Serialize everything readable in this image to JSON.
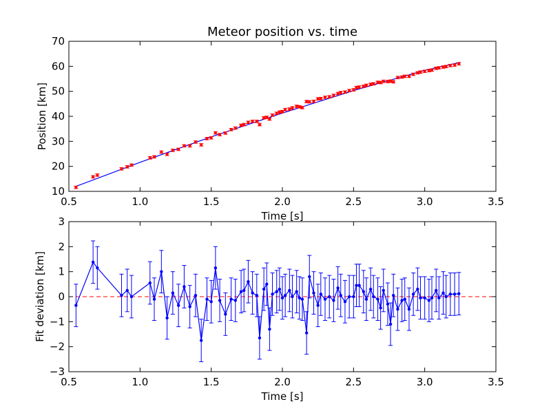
{
  "colors": {
    "fit_line": "#0000ff",
    "position_points": "#ff0000",
    "deviation_series": "#0000ff",
    "zero_reference": "#ff0000"
  },
  "chart_data": [
    {
      "type": "scatter",
      "title": "Meteor position vs. time",
      "xlabel": "Time [s]",
      "ylabel": "Position [km]",
      "xlim": [
        0.5,
        3.5
      ],
      "ylim": [
        10,
        70
      ],
      "xticks": [
        "0.5",
        "1.0",
        "1.5",
        "2.0",
        "2.5",
        "3.0",
        "3.5"
      ],
      "yticks": [
        "10",
        "20",
        "30",
        "40",
        "50",
        "60",
        "70"
      ],
      "grid": false,
      "fit_line": {
        "x": [
          0.55,
          1.0,
          1.5,
          2.0,
          2.5,
          3.0,
          3.25
        ],
        "y": [
          12.0,
          21.6,
          31.8,
          41.3,
          50.3,
          58.4,
          61.6
        ]
      },
      "series": [
        {
          "marker": "point with error bars",
          "error": 0.5,
          "x": [
            0.55,
            0.67,
            0.7,
            0.87,
            0.91,
            0.94,
            1.07,
            1.1,
            1.15,
            1.19,
            1.23,
            1.27,
            1.31,
            1.35,
            1.39,
            1.43,
            1.47,
            1.5,
            1.53,
            1.56,
            1.6,
            1.64,
            1.67,
            1.71,
            1.73,
            1.76,
            1.79,
            1.82,
            1.84,
            1.87,
            1.89,
            1.91,
            1.93,
            1.96,
            1.98,
            2.0,
            2.02,
            2.05,
            2.07,
            2.1,
            2.12,
            2.14,
            2.17,
            2.19,
            2.22,
            2.25,
            2.27,
            2.3,
            2.33,
            2.36,
            2.39,
            2.41,
            2.44,
            2.47,
            2.5,
            2.52,
            2.54,
            2.57,
            2.59,
            2.62,
            2.64,
            2.67,
            2.69,
            2.71,
            2.74,
            2.76,
            2.78,
            2.81,
            2.84,
            2.86,
            2.89,
            2.92,
            2.95,
            2.97,
            3.0,
            3.03,
            3.05,
            3.08,
            3.1,
            3.13,
            3.15,
            3.18,
            3.21,
            3.24
          ],
          "y": [
            11.6,
            15.8,
            16.5,
            19.0,
            19.8,
            20.5,
            23.4,
            23.8,
            25.7,
            24.8,
            26.4,
            26.8,
            28.2,
            28.2,
            29.7,
            28.6,
            31.1,
            31.4,
            33.4,
            32.7,
            33.3,
            34.7,
            35.3,
            36.4,
            36.7,
            37.6,
            38.0,
            38.0,
            36.7,
            39.4,
            39.6,
            38.9,
            40.5,
            41.2,
            41.7,
            41.9,
            42.7,
            42.9,
            43.4,
            44.0,
            43.8,
            43.5,
            45.9,
            45.8,
            46.0,
            47.0,
            47.1,
            47.6,
            47.8,
            48.4,
            49.1,
            49.5,
            49.7,
            50.3,
            50.6,
            51.5,
            51.7,
            52.0,
            52.4,
            52.8,
            53.0,
            53.6,
            53.5,
            54.0,
            53.9,
            54.1,
            53.8,
            55.5,
            55.7,
            56.0,
            56.0,
            56.8,
            57.4,
            57.7,
            58.0,
            58.3,
            58.5,
            59.2,
            59.4,
            59.7,
            59.9,
            60.3,
            60.5,
            61.0
          ]
        }
      ]
    },
    {
      "type": "line",
      "title": "",
      "xlabel": "Time [s]",
      "ylabel": "Fit deviation [km]",
      "xlim": [
        0.5,
        3.5
      ],
      "ylim": [
        -3,
        3
      ],
      "xticks": [
        "0.5",
        "1.0",
        "1.5",
        "2.0",
        "2.5",
        "3.0",
        "3.5"
      ],
      "yticks": [
        "−3",
        "−2",
        "−1",
        "0",
        "1",
        "2",
        "3"
      ],
      "grid": false,
      "reference_line": {
        "y": 0,
        "style": "dashed"
      },
      "series": [
        {
          "marker": "dots connected by line with error bars",
          "error": 0.85,
          "x": [
            0.55,
            0.67,
            0.7,
            0.87,
            0.91,
            0.94,
            1.07,
            1.1,
            1.15,
            1.19,
            1.23,
            1.27,
            1.31,
            1.35,
            1.39,
            1.43,
            1.47,
            1.5,
            1.53,
            1.56,
            1.6,
            1.64,
            1.67,
            1.71,
            1.73,
            1.76,
            1.79,
            1.82,
            1.84,
            1.87,
            1.89,
            1.91,
            1.93,
            1.96,
            1.98,
            2.0,
            2.02,
            2.05,
            2.07,
            2.1,
            2.12,
            2.14,
            2.17,
            2.19,
            2.22,
            2.25,
            2.27,
            2.3,
            2.33,
            2.36,
            2.39,
            2.41,
            2.44,
            2.47,
            2.5,
            2.52,
            2.54,
            2.57,
            2.59,
            2.62,
            2.64,
            2.67,
            2.69,
            2.71,
            2.74,
            2.76,
            2.78,
            2.81,
            2.84,
            2.86,
            2.89,
            2.92,
            2.95,
            2.97,
            3.0,
            3.03,
            3.05,
            3.08,
            3.1,
            3.13,
            3.15,
            3.18,
            3.21,
            3.24
          ],
          "y": [
            -0.35,
            1.38,
            1.15,
            0.05,
            0.25,
            0.0,
            0.55,
            -0.1,
            1.0,
            -0.85,
            0.15,
            -0.35,
            0.4,
            -0.4,
            0.05,
            -1.75,
            -0.1,
            -0.2,
            1.15,
            -0.15,
            -0.7,
            -0.1,
            -0.15,
            0.2,
            0.25,
            0.6,
            0.15,
            0.05,
            -1.65,
            0.3,
            0.5,
            -1.3,
            0.1,
            0.2,
            0.3,
            -0.05,
            0.05,
            0.25,
            0.0,
            0.2,
            -0.05,
            -0.1,
            -1.45,
            0.8,
            0.15,
            -0.35,
            0.1,
            -0.1,
            0.0,
            -0.15,
            0.35,
            0.05,
            -0.2,
            0.0,
            0.0,
            0.45,
            0.45,
            0.2,
            -0.1,
            0.3,
            0.0,
            -0.1,
            -0.45,
            0.25,
            -0.3,
            -1.1,
            0.05,
            -0.5,
            -0.15,
            -0.1,
            -0.5,
            0.1,
            0.3,
            -0.05,
            -0.05,
            -0.15,
            -0.05,
            0.25,
            -0.05,
            0.15,
            0.0,
            0.1,
            0.1,
            0.12
          ]
        }
      ]
    }
  ]
}
